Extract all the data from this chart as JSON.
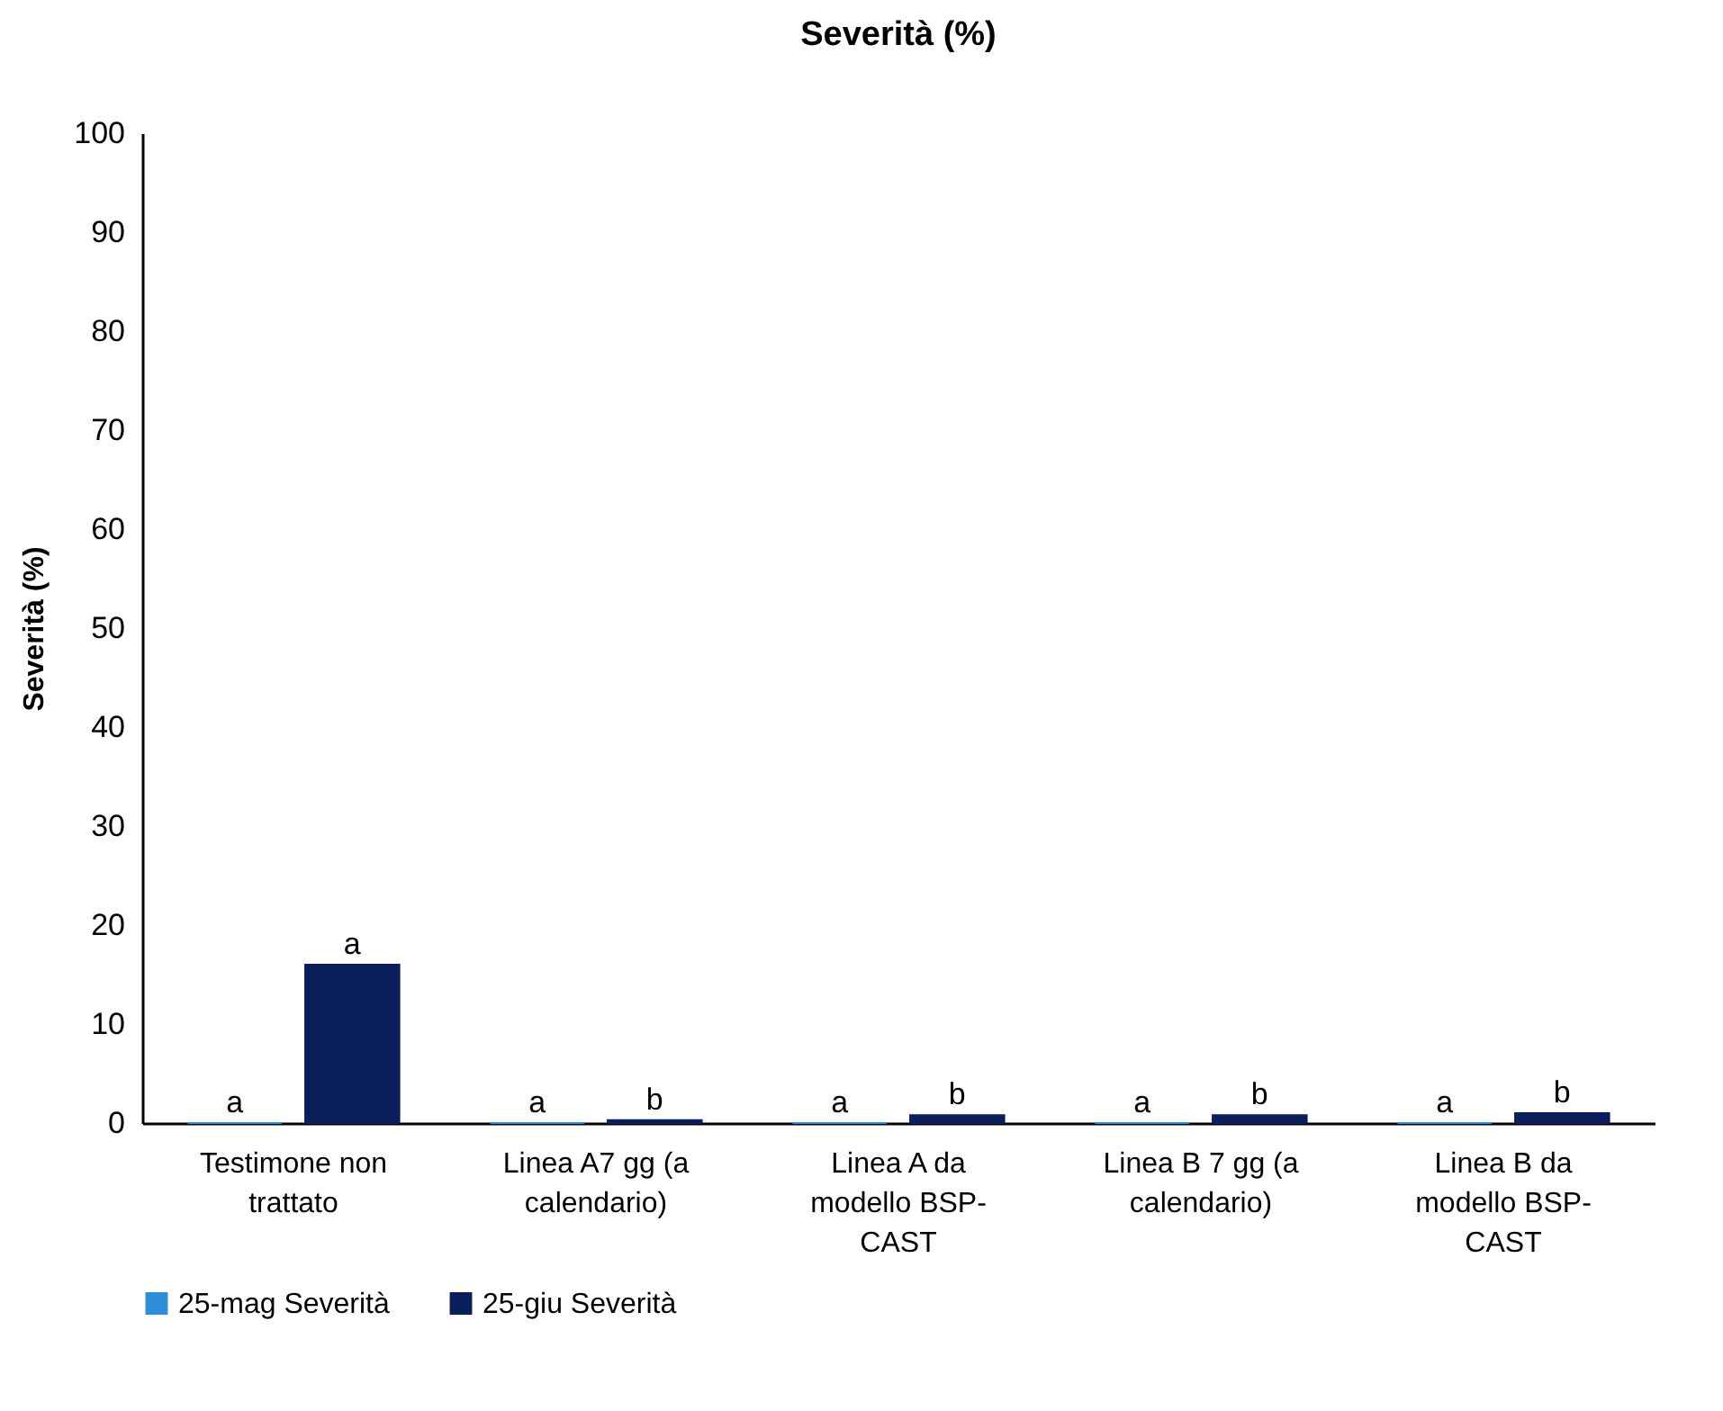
{
  "chart_data": {
    "type": "bar",
    "title": "Severità (%)",
    "ylabel": "Severità (%)",
    "categories": [
      "Testimone non trattato",
      "Linea A7 gg (a calendario)",
      "Linea A da modello BSP-CAST",
      "Linea B 7 gg (a calendario)",
      "Linea B da modello BSP-CAST"
    ],
    "series": [
      {
        "name": "25-mag Severità",
        "color": "#2e8fd8",
        "values": [
          0,
          0,
          0,
          0,
          0
        ],
        "value_labels": [
          "a",
          "a",
          "a",
          "a",
          "a"
        ]
      },
      {
        "name": "25-giu Severità",
        "color": "#0b1f5c",
        "values": [
          16,
          0.3,
          0.8,
          0.8,
          1.0
        ],
        "value_labels": [
          "a",
          "b",
          "b",
          "b",
          "b"
        ]
      }
    ],
    "ylim": [
      0,
      100
    ],
    "yticks": [
      0,
      10,
      20,
      30,
      40,
      50,
      60,
      70,
      80,
      90,
      100
    ],
    "grid": false,
    "legend": "bottom"
  }
}
